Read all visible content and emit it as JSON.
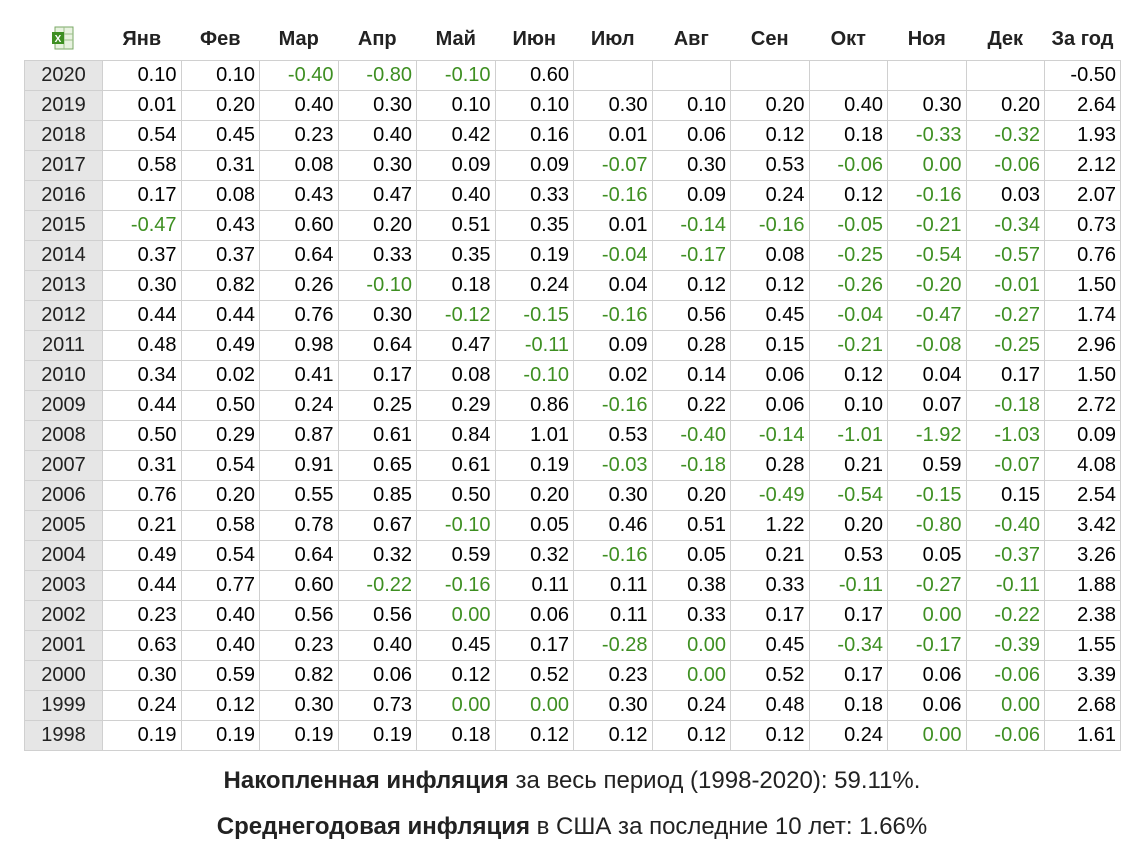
{
  "header": {
    "icon": "excel-icon",
    "months": [
      "Янв",
      "Фев",
      "Мар",
      "Апр",
      "Май",
      "Июн",
      "Июл",
      "Авг",
      "Сен",
      "Окт",
      "Ноя",
      "Дек"
    ],
    "total": "За год"
  },
  "colors": {
    "negative": "#3e8f22",
    "year_bg": "#e6e6e6",
    "border": "#d0d0d0"
  },
  "rows": [
    {
      "year": "2020",
      "values": [
        "0.10",
        "0.10",
        "-0.40",
        "-0.80",
        "-0.10",
        "0.60",
        "",
        "",
        "",
        "",
        "",
        ""
      ],
      "total": "-0.50"
    },
    {
      "year": "2019",
      "values": [
        "0.01",
        "0.20",
        "0.40",
        "0.30",
        "0.10",
        "0.10",
        "0.30",
        "0.10",
        "0.20",
        "0.40",
        "0.30",
        "0.20"
      ],
      "total": "2.64"
    },
    {
      "year": "2018",
      "values": [
        "0.54",
        "0.45",
        "0.23",
        "0.40",
        "0.42",
        "0.16",
        "0.01",
        "0.06",
        "0.12",
        "0.18",
        "-0.33",
        "-0.32"
      ],
      "total": "1.93"
    },
    {
      "year": "2017",
      "values": [
        "0.58",
        "0.31",
        "0.08",
        "0.30",
        "0.09",
        "0.09",
        "-0.07",
        "0.30",
        "0.53",
        "-0.06",
        "0.00",
        "-0.06"
      ],
      "total": "2.12"
    },
    {
      "year": "2016",
      "values": [
        "0.17",
        "0.08",
        "0.43",
        "0.47",
        "0.40",
        "0.33",
        "-0.16",
        "0.09",
        "0.24",
        "0.12",
        "-0.16",
        "0.03"
      ],
      "total": "2.07"
    },
    {
      "year": "2015",
      "values": [
        "-0.47",
        "0.43",
        "0.60",
        "0.20",
        "0.51",
        "0.35",
        "0.01",
        "-0.14",
        "-0.16",
        "-0.05",
        "-0.21",
        "-0.34"
      ],
      "total": "0.73"
    },
    {
      "year": "2014",
      "values": [
        "0.37",
        "0.37",
        "0.64",
        "0.33",
        "0.35",
        "0.19",
        "-0.04",
        "-0.17",
        "0.08",
        "-0.25",
        "-0.54",
        "-0.57"
      ],
      "total": "0.76"
    },
    {
      "year": "2013",
      "values": [
        "0.30",
        "0.82",
        "0.26",
        "-0.10",
        "0.18",
        "0.24",
        "0.04",
        "0.12",
        "0.12",
        "-0.26",
        "-0.20",
        "-0.01"
      ],
      "total": "1.50"
    },
    {
      "year": "2012",
      "values": [
        "0.44",
        "0.44",
        "0.76",
        "0.30",
        "-0.12",
        "-0.15",
        "-0.16",
        "0.56",
        "0.45",
        "-0.04",
        "-0.47",
        "-0.27"
      ],
      "total": "1.74"
    },
    {
      "year": "2011",
      "values": [
        "0.48",
        "0.49",
        "0.98",
        "0.64",
        "0.47",
        "-0.11",
        "0.09",
        "0.28",
        "0.15",
        "-0.21",
        "-0.08",
        "-0.25"
      ],
      "total": "2.96"
    },
    {
      "year": "2010",
      "values": [
        "0.34",
        "0.02",
        "0.41",
        "0.17",
        "0.08",
        "-0.10",
        "0.02",
        "0.14",
        "0.06",
        "0.12",
        "0.04",
        "0.17"
      ],
      "total": "1.50"
    },
    {
      "year": "2009",
      "values": [
        "0.44",
        "0.50",
        "0.24",
        "0.25",
        "0.29",
        "0.86",
        "-0.16",
        "0.22",
        "0.06",
        "0.10",
        "0.07",
        "-0.18"
      ],
      "total": "2.72"
    },
    {
      "year": "2008",
      "values": [
        "0.50",
        "0.29",
        "0.87",
        "0.61",
        "0.84",
        "1.01",
        "0.53",
        "-0.40",
        "-0.14",
        "-1.01",
        "-1.92",
        "-1.03"
      ],
      "total": "0.09"
    },
    {
      "year": "2007",
      "values": [
        "0.31",
        "0.54",
        "0.91",
        "0.65",
        "0.61",
        "0.19",
        "-0.03",
        "-0.18",
        "0.28",
        "0.21",
        "0.59",
        "-0.07"
      ],
      "total": "4.08"
    },
    {
      "year": "2006",
      "values": [
        "0.76",
        "0.20",
        "0.55",
        "0.85",
        "0.50",
        "0.20",
        "0.30",
        "0.20",
        "-0.49",
        "-0.54",
        "-0.15",
        "0.15"
      ],
      "total": "2.54"
    },
    {
      "year": "2005",
      "values": [
        "0.21",
        "0.58",
        "0.78",
        "0.67",
        "-0.10",
        "0.05",
        "0.46",
        "0.51",
        "1.22",
        "0.20",
        "-0.80",
        "-0.40"
      ],
      "total": "3.42"
    },
    {
      "year": "2004",
      "values": [
        "0.49",
        "0.54",
        "0.64",
        "0.32",
        "0.59",
        "0.32",
        "-0.16",
        "0.05",
        "0.21",
        "0.53",
        "0.05",
        "-0.37"
      ],
      "total": "3.26"
    },
    {
      "year": "2003",
      "values": [
        "0.44",
        "0.77",
        "0.60",
        "-0.22",
        "-0.16",
        "0.11",
        "0.11",
        "0.38",
        "0.33",
        "-0.11",
        "-0.27",
        "-0.11"
      ],
      "total": "1.88"
    },
    {
      "year": "2002",
      "values": [
        "0.23",
        "0.40",
        "0.56",
        "0.56",
        "0.00",
        "0.06",
        "0.11",
        "0.33",
        "0.17",
        "0.17",
        "0.00",
        "-0.22"
      ],
      "total": "2.38"
    },
    {
      "year": "2001",
      "values": [
        "0.63",
        "0.40",
        "0.23",
        "0.40",
        "0.45",
        "0.17",
        "-0.28",
        "0.00",
        "0.45",
        "-0.34",
        "-0.17",
        "-0.39"
      ],
      "total": "1.55"
    },
    {
      "year": "2000",
      "values": [
        "0.30",
        "0.59",
        "0.82",
        "0.06",
        "0.12",
        "0.52",
        "0.23",
        "0.00",
        "0.52",
        "0.17",
        "0.06",
        "-0.06"
      ],
      "total": "3.39"
    },
    {
      "year": "1999",
      "values": [
        "0.24",
        "0.12",
        "0.30",
        "0.73",
        "0.00",
        "0.00",
        "0.30",
        "0.24",
        "0.48",
        "0.18",
        "0.06",
        "0.00"
      ],
      "total": "2.68"
    },
    {
      "year": "1998",
      "values": [
        "0.19",
        "0.19",
        "0.19",
        "0.19",
        "0.18",
        "0.12",
        "0.12",
        "0.12",
        "0.12",
        "0.24",
        "0.00",
        "-0.06"
      ],
      "total": "1.61"
    }
  ],
  "green_cells": {
    "2020": [
      2,
      3,
      4
    ],
    "2018": [
      10,
      11
    ],
    "2017": [
      6,
      9,
      10,
      11
    ],
    "2016": [
      6,
      10
    ],
    "2015": [
      0,
      7,
      8,
      9,
      10,
      11
    ],
    "2014": [
      6,
      7,
      9,
      10,
      11
    ],
    "2013": [
      3,
      9,
      10,
      11
    ],
    "2012": [
      4,
      5,
      6,
      9,
      10,
      11
    ],
    "2011": [
      5,
      9,
      10,
      11
    ],
    "2010": [
      5
    ],
    "2009": [
      6,
      11
    ],
    "2008": [
      7,
      8,
      9,
      10,
      11
    ],
    "2007": [
      6,
      7,
      11
    ],
    "2006": [
      8,
      9,
      10
    ],
    "2005": [
      4,
      10,
      11
    ],
    "2004": [
      6,
      11
    ],
    "2003": [
      3,
      4,
      9,
      10,
      11
    ],
    "2002": [
      4,
      10,
      11
    ],
    "2001": [
      6,
      7,
      9,
      10,
      11
    ],
    "2000": [
      7,
      11
    ],
    "1999": [
      4,
      5,
      11
    ],
    "1998": [
      10,
      11
    ]
  },
  "footer": {
    "line1_bold": "Накопленная инфляция",
    "line1_text": " за весь период (1998-2020): 59.11%.",
    "line2_bold": "Среднегодовая инфляция",
    "line2_text": " в США за последние 10 лет: 1.66%"
  }
}
